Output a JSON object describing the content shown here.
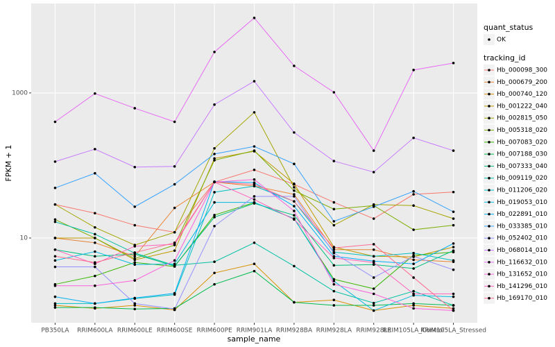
{
  "chart_data": {
    "type": "line",
    "log_scale": true,
    "grid": true,
    "legend": "right",
    "x_label": "sample_name",
    "y_label": "FPKM + 1",
    "point_color": "#000000",
    "panel_color": "#EBEBEB",
    "shape_legend": {
      "title": "quant_status",
      "labels": [
        "OK"
      ]
    },
    "legend_title": "tracking_id",
    "categories": [
      "PB350LA",
      "RRIM600LA",
      "RRIM600LE",
      "RRIM600SE",
      "RRIM600PE",
      "RRIM901LA",
      "RRIM928BA",
      "RRIM928LA",
      "RRIM928LE",
      "RRIM105LA_Control",
      "RRIM105LA_Stressed"
    ],
    "ylim": [
      0.68,
      17100
    ],
    "yticks": [
      10,
      1000
    ],
    "series": [
      {
        "name": "Hb_000098_300",
        "color": "#F8766D",
        "values": [
          29,
          22,
          15,
          12,
          59,
          87,
          55,
          31,
          18.5,
          40,
          43
        ]
      },
      {
        "name": "Hb_000679_200",
        "color": "#EA8331",
        "values": [
          10,
          8.6,
          5.6,
          26,
          59,
          52,
          40,
          6.9,
          6.9,
          5,
          4.7
        ]
      },
      {
        "name": "Hb_000740_120",
        "color": "#D89000",
        "values": [
          1.18,
          1.07,
          1.18,
          1.02,
          3.3,
          4.4,
          1.3,
          1.4,
          1.0,
          1.18,
          1.07
        ]
      },
      {
        "name": "Hb_001222_040",
        "color": "#C09B00",
        "values": [
          10,
          10,
          5,
          6.7,
          125,
          157,
          56,
          7.5,
          5.6,
          5.5,
          7.5
        ]
      },
      {
        "name": "Hb_002815_050",
        "color": "#A3A500",
        "values": [
          29,
          14,
          8,
          12,
          172,
          540,
          50,
          15,
          29,
          28,
          18.5
        ]
      },
      {
        "name": "Hb_005318_020",
        "color": "#7CAE00",
        "values": [
          18,
          10,
          5.2,
          8,
          118,
          160,
          45,
          25,
          28,
          13,
          15
        ]
      },
      {
        "name": "Hb_007083_020",
        "color": "#39B600",
        "values": [
          2.3,
          3.0,
          4.6,
          4.05,
          20.7,
          30.8,
          18.5,
          2.7,
          2.0,
          5.8,
          6.4
        ]
      },
      {
        "name": "Hb_007188_030",
        "color": "#00BB4E",
        "values": [
          1.1,
          1.1,
          1.05,
          1.07,
          2.3,
          3.5,
          1.3,
          1.18,
          1.18,
          1.25,
          1.18
        ]
      },
      {
        "name": "Hb_007333_040",
        "color": "#00BF7D",
        "values": [
          6.9,
          5.6,
          6.0,
          4.1,
          19.4,
          30,
          20.6,
          4.2,
          4.3,
          3.8,
          6.7
        ]
      },
      {
        "name": "Hb_009119_020",
        "color": "#00C1A3",
        "values": [
          16.7,
          11.3,
          6.2,
          4.2,
          4.7,
          8.6,
          4.1,
          1.85,
          1.27,
          1.85,
          1.18
        ]
      },
      {
        "name": "Hb_011206_020",
        "color": "#00BFC4",
        "values": [
          1.25,
          1.25,
          1.46,
          1.66,
          42.8,
          52,
          32,
          6.4,
          5.6,
          6.2,
          4.9
        ]
      },
      {
        "name": "Hb_019053_010",
        "color": "#00BAE0",
        "values": [
          4.9,
          6.5,
          4.3,
          4.4,
          31,
          31,
          18.5,
          2.55,
          1.0,
          1.62,
          1.55
        ]
      },
      {
        "name": "Hb_022891_010",
        "color": "#00B0F6",
        "values": [
          1.55,
          1.25,
          1.49,
          1.73,
          60,
          58,
          27.5,
          5.6,
          4.8,
          4.4,
          8.4
        ]
      },
      {
        "name": "Hb_033385_010",
        "color": "#35A2FF",
        "values": [
          49,
          78,
          27,
          55,
          144,
          183,
          105,
          17,
          27,
          44,
          23
        ]
      },
      {
        "name": "Hb_052402_010",
        "color": "#9590FF",
        "values": [
          4.0,
          4.0,
          1.25,
          1.05,
          14.6,
          37.5,
          37.5,
          6.2,
          2.85,
          5.6,
          3.65
        ]
      },
      {
        "name": "Hb_068014_010",
        "color": "#C77CFF",
        "values": [
          113,
          168,
          95,
          97,
          690,
          1450,
          285,
          115,
          81,
          240,
          160
        ]
      },
      {
        "name": "Hb_116632_010",
        "color": "#E76BF3",
        "values": [
          400,
          980,
          615,
          400,
          3670,
          10800,
          2360,
          1020,
          160,
          2070,
          2580
        ]
      },
      {
        "name": "Hb_131652_010",
        "color": "#FA62DB",
        "values": [
          2.2,
          2.2,
          2.6,
          4.9,
          59,
          64,
          23.6,
          2.3,
          1.7,
          1.07,
          1.0
        ]
      },
      {
        "name": "Hb_141296_010",
        "color": "#FF62BC",
        "values": [
          6.9,
          4.4,
          7.7,
          8.2,
          59,
          34,
          18,
          5.3,
          4.6,
          1.7,
          1.7
        ]
      },
      {
        "name": "Hb_169170_010",
        "color": "#FF6C91",
        "values": [
          5.6,
          4.6,
          6.3,
          8.6,
          59,
          55,
          32,
          7.3,
          8.2,
          2.85,
          1.0
        ]
      }
    ]
  }
}
